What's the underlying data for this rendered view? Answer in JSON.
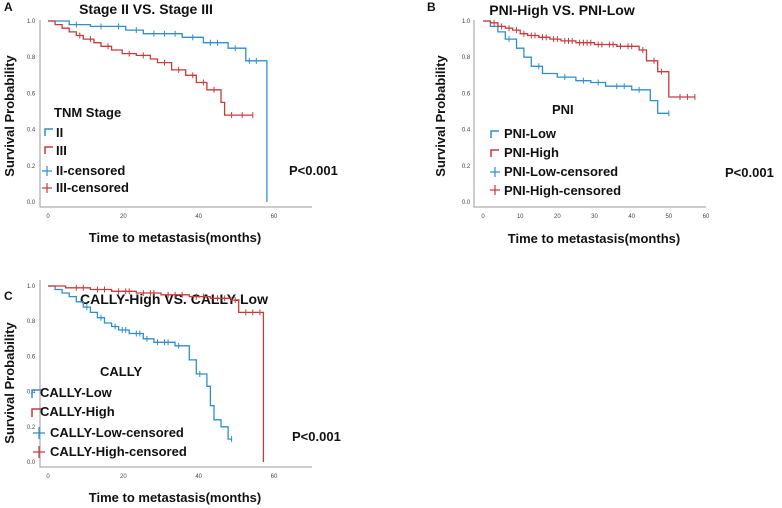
{
  "colors": {
    "blue": "#2e8fcc",
    "red": "#c93a3a"
  },
  "chart_data": [
    {
      "type": "line",
      "panel": "A",
      "title": "Stage II VS. Stage III",
      "xlabel": "Time to metastasis(months)",
      "ylabel": "Survival Probability",
      "xlim": [
        0,
        64
      ],
      "ylim": [
        0,
        1
      ],
      "xticks": [
        "0",
        "20",
        "40",
        "60"
      ],
      "yticks": [
        "0.0",
        "0.2",
        "0.4",
        "0.6",
        "0.8",
        "1.0"
      ],
      "legend_title": "TNM Stage",
      "legend": [
        "II",
        "III",
        "II-censored",
        "III-censored"
      ],
      "p_value": "P<0.001",
      "series": [
        {
          "name": "II",
          "color": "blue",
          "steps": [
            [
              0,
              1
            ],
            [
              6,
              0.98
            ],
            [
              12,
              0.97
            ],
            [
              22,
              0.95
            ],
            [
              27,
              0.93
            ],
            [
              38,
              0.91
            ],
            [
              44,
              0.88
            ],
            [
              51,
              0.85
            ],
            [
              56,
              0.78
            ],
            [
              62,
              0.0
            ]
          ],
          "end": 62,
          "censored": [
            [
              8,
              0.98
            ],
            [
              15,
              0.97
            ],
            [
              20,
              0.97
            ],
            [
              25,
              0.95
            ],
            [
              30,
              0.93
            ],
            [
              33,
              0.93
            ],
            [
              36,
              0.93
            ],
            [
              41,
              0.91
            ],
            [
              46,
              0.88
            ],
            [
              48,
              0.88
            ],
            [
              53,
              0.85
            ],
            [
              57,
              0.78
            ],
            [
              59,
              0.78
            ]
          ]
        },
        {
          "name": "III",
          "color": "red",
          "steps": [
            [
              0,
              1
            ],
            [
              2,
              0.98
            ],
            [
              4,
              0.96
            ],
            [
              6,
              0.94
            ],
            [
              8,
              0.92
            ],
            [
              10,
              0.9
            ],
            [
              13,
              0.88
            ],
            [
              15,
              0.86
            ],
            [
              18,
              0.84
            ],
            [
              21,
              0.82
            ],
            [
              25,
              0.81
            ],
            [
              29,
              0.79
            ],
            [
              31,
              0.77
            ],
            [
              35,
              0.73
            ],
            [
              39,
              0.7
            ],
            [
              42,
              0.66
            ],
            [
              45,
              0.62
            ],
            [
              49,
              0.55
            ],
            [
              50,
              0.48
            ]
          ],
          "end": 58,
          "censored": [
            [
              9,
              0.92
            ],
            [
              12,
              0.9
            ],
            [
              17,
              0.86
            ],
            [
              23,
              0.82
            ],
            [
              27,
              0.81
            ],
            [
              33,
              0.77
            ],
            [
              37,
              0.73
            ],
            [
              41,
              0.7
            ],
            [
              44,
              0.66
            ],
            [
              47,
              0.62
            ],
            [
              52,
              0.48
            ],
            [
              55,
              0.48
            ],
            [
              58,
              0.48
            ]
          ]
        }
      ]
    },
    {
      "type": "line",
      "panel": "B",
      "title": "PNI-High VS. PNI-Low",
      "xlabel": "Time to metastasis(months)",
      "ylabel": "Survival Probability",
      "xlim": [
        0,
        60
      ],
      "ylim": [
        0,
        1
      ],
      "xticks": [
        "0",
        "10",
        "20",
        "30",
        "40",
        "50",
        "60"
      ],
      "yticks": [
        "0.0",
        "0.2",
        "0.4",
        "0.6",
        "0.8",
        "1.0"
      ],
      "legend_title": "PNI",
      "legend": [
        "PNI-Low",
        "PNI-High",
        "PNI-Low-censored",
        "PNI-High-censored"
      ],
      "p_value": "P<0.001",
      "series": [
        {
          "name": "PNI-Low",
          "color": "blue",
          "steps": [
            [
              0,
              1
            ],
            [
              2,
              0.97
            ],
            [
              4,
              0.94
            ],
            [
              6,
              0.9
            ],
            [
              9,
              0.85
            ],
            [
              11,
              0.8
            ],
            [
              13,
              0.75
            ],
            [
              16,
              0.71
            ],
            [
              20,
              0.69
            ],
            [
              25,
              0.67
            ],
            [
              29,
              0.66
            ],
            [
              33,
              0.64
            ],
            [
              40,
              0.62
            ],
            [
              45,
              0.56
            ],
            [
              47,
              0.49
            ]
          ],
          "end": 50,
          "censored": [
            [
              7,
              0.9
            ],
            [
              15,
              0.75
            ],
            [
              22,
              0.69
            ],
            [
              27,
              0.67
            ],
            [
              31,
              0.66
            ],
            [
              36,
              0.64
            ],
            [
              38,
              0.64
            ],
            [
              42,
              0.62
            ],
            [
              50,
              0.49
            ]
          ]
        },
        {
          "name": "PNI-High",
          "color": "red",
          "steps": [
            [
              0,
              1
            ],
            [
              2,
              0.99
            ],
            [
              4,
              0.97
            ],
            [
              6,
              0.96
            ],
            [
              8,
              0.95
            ],
            [
              10,
              0.93
            ],
            [
              12,
              0.92
            ],
            [
              15,
              0.91
            ],
            [
              18,
              0.9
            ],
            [
              21,
              0.89
            ],
            [
              25,
              0.88
            ],
            [
              30,
              0.87
            ],
            [
              36,
              0.86
            ],
            [
              42,
              0.84
            ],
            [
              44,
              0.78
            ],
            [
              47,
              0.72
            ],
            [
              50,
              0.58
            ]
          ],
          "end": 57,
          "censored": [
            [
              3,
              0.99
            ],
            [
              5,
              0.97
            ],
            [
              7,
              0.96
            ],
            [
              9,
              0.95
            ],
            [
              11,
              0.93
            ],
            [
              13,
              0.92
            ],
            [
              14,
              0.92
            ],
            [
              16,
              0.91
            ],
            [
              17,
              0.91
            ],
            [
              19,
              0.9
            ],
            [
              20,
              0.9
            ],
            [
              22,
              0.89
            ],
            [
              23,
              0.89
            ],
            [
              24,
              0.89
            ],
            [
              26,
              0.88
            ],
            [
              27,
              0.88
            ],
            [
              28,
              0.88
            ],
            [
              29,
              0.88
            ],
            [
              31,
              0.87
            ],
            [
              32,
              0.87
            ],
            [
              34,
              0.87
            ],
            [
              35,
              0.87
            ],
            [
              37,
              0.86
            ],
            [
              39,
              0.86
            ],
            [
              40,
              0.86
            ],
            [
              43,
              0.84
            ],
            [
              46,
              0.78
            ],
            [
              48,
              0.72
            ],
            [
              53,
              0.58
            ],
            [
              55,
              0.58
            ],
            [
              57,
              0.58
            ]
          ]
        }
      ]
    },
    {
      "type": "line",
      "panel": "C",
      "title": "CALLY-High VS. CALLY-Low",
      "xlabel": "Time to metastasis(months)",
      "ylabel": "Survival Probability",
      "xlim": [
        0,
        64
      ],
      "ylim": [
        0,
        1
      ],
      "xticks": [
        "0",
        "20",
        "40",
        "60"
      ],
      "yticks": [
        "0.0",
        "0.2",
        "0.4",
        "0.6",
        "0.8",
        "1.0"
      ],
      "legend_title": "CALLY",
      "legend": [
        "CALLY-Low",
        "CALLY-High",
        "CALLY-Low-censored",
        "CALLY-High-censored"
      ],
      "p_value": "P<0.001",
      "series": [
        {
          "name": "CALLY-Low",
          "color": "blue",
          "steps": [
            [
              0,
              1
            ],
            [
              2,
              0.98
            ],
            [
              4,
              0.96
            ],
            [
              6,
              0.94
            ],
            [
              8,
              0.91
            ],
            [
              10,
              0.88
            ],
            [
              12,
              0.85
            ],
            [
              14,
              0.82
            ],
            [
              16,
              0.79
            ],
            [
              18,
              0.77
            ],
            [
              20,
              0.75
            ],
            [
              23,
              0.73
            ],
            [
              27,
              0.7
            ],
            [
              30,
              0.68
            ],
            [
              36,
              0.66
            ],
            [
              40,
              0.58
            ],
            [
              42,
              0.5
            ],
            [
              45,
              0.43
            ],
            [
              46,
              0.32
            ],
            [
              47,
              0.24
            ],
            [
              49,
              0.2
            ],
            [
              51,
              0.13
            ]
          ],
          "end": 52,
          "censored": [
            [
              11,
              0.88
            ],
            [
              15,
              0.82
            ],
            [
              19,
              0.77
            ],
            [
              21,
              0.75
            ],
            [
              22,
              0.75
            ],
            [
              25,
              0.73
            ],
            [
              26,
              0.73
            ],
            [
              28,
              0.7
            ],
            [
              31,
              0.68
            ],
            [
              33,
              0.68
            ],
            [
              34,
              0.68
            ],
            [
              37,
              0.66
            ],
            [
              43,
              0.5
            ],
            [
              52,
              0.13
            ]
          ]
        },
        {
          "name": "CALLY-High",
          "color": "red",
          "steps": [
            [
              0,
              1
            ],
            [
              5,
              0.99
            ],
            [
              12,
              0.98
            ],
            [
              18,
              0.97
            ],
            [
              25,
              0.96
            ],
            [
              32,
              0.95
            ],
            [
              40,
              0.94
            ],
            [
              46,
              0.93
            ],
            [
              52,
              0.92
            ],
            [
              54,
              0.85
            ],
            [
              61,
              0.0
            ]
          ],
          "end": 61,
          "censored": [
            [
              8,
              0.99
            ],
            [
              10,
              0.99
            ],
            [
              14,
              0.98
            ],
            [
              16,
              0.98
            ],
            [
              20,
              0.97
            ],
            [
              22,
              0.97
            ],
            [
              23,
              0.97
            ],
            [
              27,
              0.96
            ],
            [
              29,
              0.96
            ],
            [
              30,
              0.96
            ],
            [
              34,
              0.95
            ],
            [
              36,
              0.95
            ],
            [
              38,
              0.95
            ],
            [
              42,
              0.94
            ],
            [
              44,
              0.94
            ],
            [
              48,
              0.93
            ],
            [
              50,
              0.93
            ],
            [
              53,
              0.92
            ],
            [
              56,
              0.85
            ],
            [
              58,
              0.85
            ],
            [
              60,
              0.85
            ]
          ]
        }
      ]
    }
  ]
}
